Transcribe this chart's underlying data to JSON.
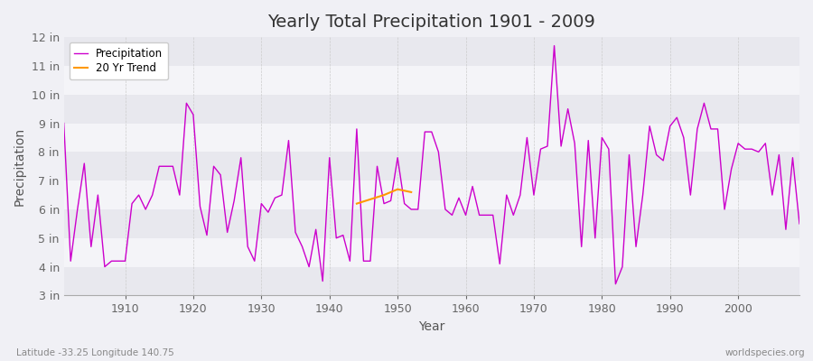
{
  "title": "Yearly Total Precipitation 1901 - 2009",
  "xlabel": "Year",
  "ylabel": "Precipitation",
  "subtitle_lat": "Latitude -33.25 Longitude 140.75",
  "watermark": "worldspecies.org",
  "ylim": [
    3,
    12
  ],
  "yticks": [
    3,
    4,
    5,
    6,
    7,
    8,
    9,
    10,
    11,
    12
  ],
  "ytick_labels": [
    "3 in",
    "4 in",
    "5 in",
    "6 in",
    "7 in",
    "8 in",
    "9 in",
    "10 in",
    "11 in",
    "12 in"
  ],
  "years": [
    1901,
    1902,
    1903,
    1904,
    1905,
    1906,
    1907,
    1908,
    1909,
    1910,
    1911,
    1912,
    1913,
    1914,
    1915,
    1916,
    1917,
    1918,
    1919,
    1920,
    1921,
    1922,
    1923,
    1924,
    1925,
    1926,
    1927,
    1928,
    1929,
    1930,
    1931,
    1932,
    1933,
    1934,
    1935,
    1936,
    1937,
    1938,
    1939,
    1940,
    1941,
    1942,
    1943,
    1944,
    1945,
    1946,
    1947,
    1948,
    1949,
    1950,
    1951,
    1952,
    1953,
    1954,
    1955,
    1956,
    1957,
    1958,
    1959,
    1960,
    1961,
    1962,
    1963,
    1964,
    1965,
    1966,
    1967,
    1968,
    1969,
    1970,
    1971,
    1972,
    1973,
    1974,
    1975,
    1976,
    1977,
    1978,
    1979,
    1980,
    1981,
    1982,
    1983,
    1984,
    1985,
    1986,
    1987,
    1988,
    1989,
    1990,
    1991,
    1992,
    1993,
    1994,
    1995,
    1996,
    1997,
    1998,
    1999,
    2000,
    2001,
    2002,
    2003,
    2004,
    2005,
    2006,
    2007,
    2008,
    2009
  ],
  "precip": [
    9.0,
    4.2,
    6.0,
    7.6,
    4.7,
    6.5,
    4.0,
    4.2,
    4.2,
    4.2,
    6.2,
    6.5,
    6.0,
    6.5,
    7.5,
    7.5,
    7.5,
    6.5,
    9.7,
    9.3,
    6.1,
    5.1,
    7.5,
    7.2,
    5.2,
    6.3,
    7.8,
    4.7,
    4.2,
    6.2,
    5.9,
    6.4,
    6.5,
    8.4,
    5.2,
    4.7,
    4.0,
    5.3,
    3.5,
    7.8,
    5.0,
    5.1,
    4.2,
    8.8,
    4.2,
    4.2,
    7.5,
    6.2,
    6.3,
    7.8,
    6.2,
    6.0,
    6.0,
    8.7,
    8.7,
    8.0,
    6.0,
    5.8,
    6.4,
    5.8,
    6.8,
    5.8,
    5.8,
    5.8,
    4.1,
    6.5,
    5.8,
    6.5,
    8.5,
    6.5,
    8.1,
    8.2,
    11.7,
    8.2,
    9.5,
    8.3,
    4.7,
    8.4,
    5.0,
    8.5,
    8.1,
    3.4,
    4.0,
    7.9,
    4.7,
    6.5,
    8.9,
    7.9,
    7.7,
    8.9,
    9.2,
    8.5,
    6.5,
    8.8,
    9.7,
    8.8,
    8.8,
    6.0,
    7.4,
    8.3,
    8.1,
    8.1,
    8.0,
    8.3,
    6.5,
    7.9,
    5.3,
    7.8,
    5.5
  ],
  "trend_years": [
    1944,
    1946,
    1948,
    1950,
    1952
  ],
  "trend_values": [
    6.2,
    6.35,
    6.5,
    6.7,
    6.6
  ],
  "precip_color": "#cc00cc",
  "trend_color": "#ff9900",
  "bg_color": "#f0f0f5",
  "plot_bg_color": "#f0f0f5",
  "grid_color_h": "#dddddd",
  "grid_color_v": "#cccccc",
  "title_fontsize": 14,
  "label_fontsize": 10,
  "tick_fontsize": 9
}
